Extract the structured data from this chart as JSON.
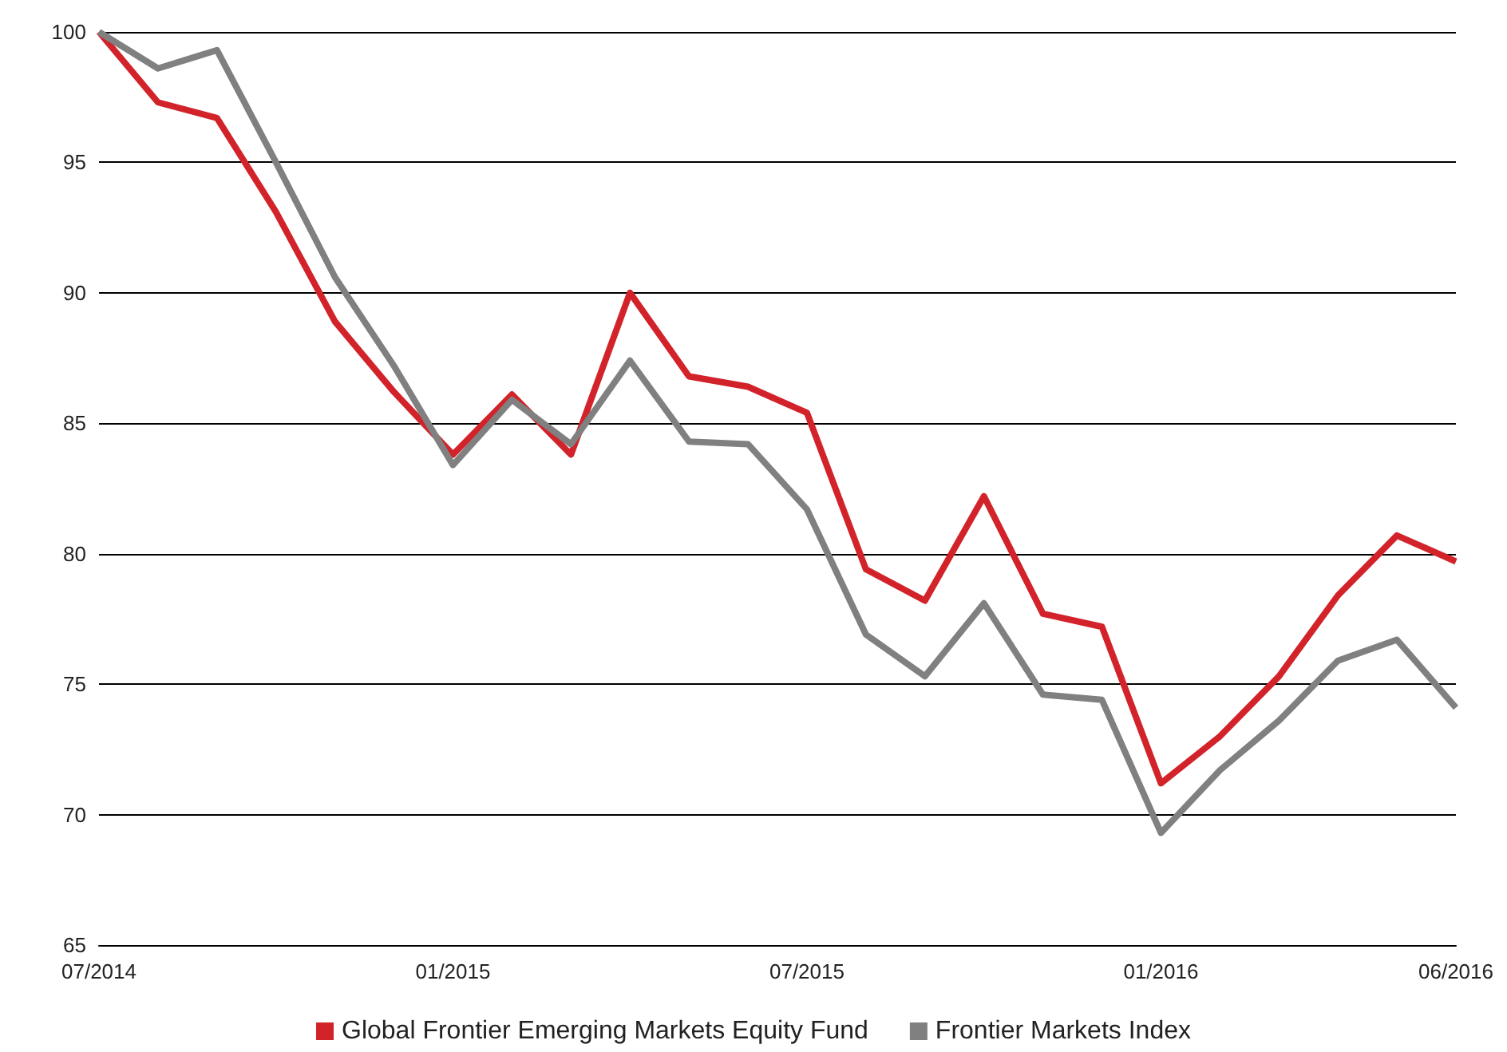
{
  "chart_data": {
    "type": "line",
    "categories": [
      "07/2014",
      null,
      null,
      null,
      null,
      null,
      "01/2015",
      null,
      null,
      null,
      null,
      null,
      "07/2015",
      null,
      null,
      null,
      null,
      null,
      "01/2016",
      null,
      null,
      null,
      null,
      "06/2016"
    ],
    "series": [
      {
        "name": "Global Frontier Emerging Markets Equity Fund",
        "color": "#d2232a",
        "values": [
          100,
          97.3,
          96.7,
          93.1,
          88.9,
          86.2,
          83.8,
          86.1,
          83.8,
          90.0,
          86.8,
          86.4,
          85.4,
          79.4,
          78.2,
          82.2,
          77.7,
          77.2,
          71.2,
          73.0,
          75.3,
          78.4,
          80.7,
          79.7
        ]
      },
      {
        "name": "Frontier Markets Index",
        "color": "#808080",
        "values": [
          100,
          98.6,
          99.3,
          95.0,
          90.6,
          87.2,
          83.4,
          85.9,
          84.2,
          87.4,
          84.3,
          84.2,
          81.7,
          76.9,
          75.3,
          78.1,
          74.6,
          74.4,
          69.3,
          71.7,
          73.6,
          75.9,
          76.7,
          74.1
        ]
      }
    ],
    "ylim": [
      65,
      100
    ],
    "yticks": [
      65,
      70,
      75,
      80,
      85,
      90,
      95,
      100
    ],
    "grid": "y",
    "legend": "bottom"
  }
}
